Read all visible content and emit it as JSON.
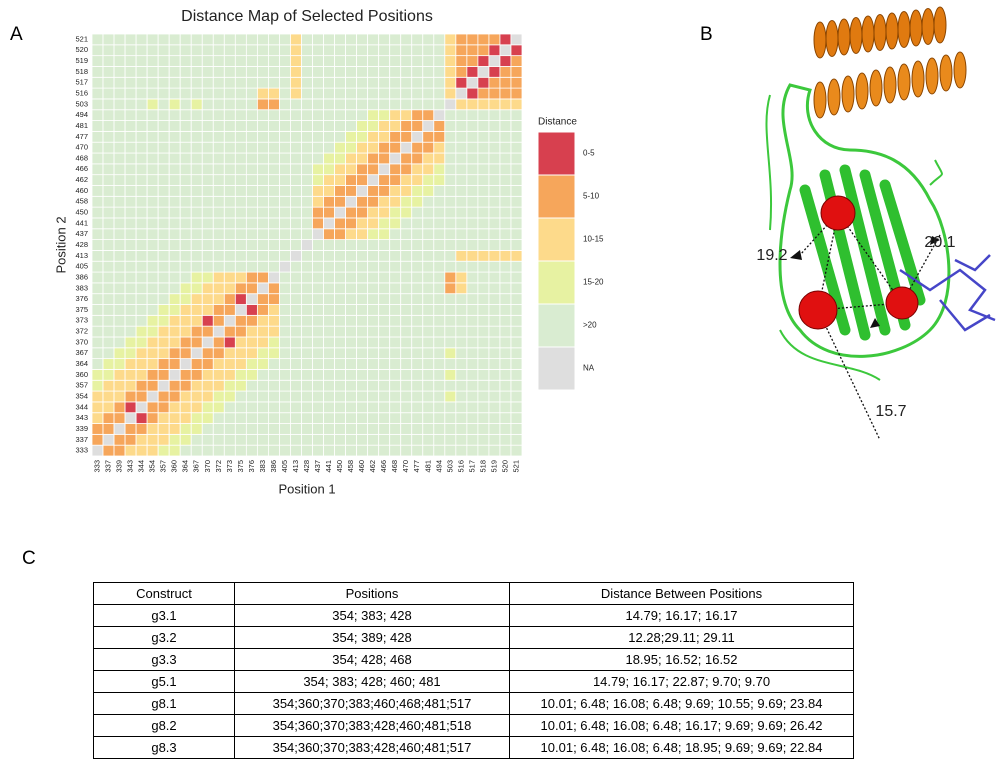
{
  "labels": [
    "A",
    "B",
    "C"
  ],
  "chart_data": {
    "type": "heatmap",
    "title": "Distance Map of Selected Positions",
    "x_label": "Position 1",
    "y_label": "Position 2",
    "categories": [
      333,
      337,
      339,
      343,
      344,
      354,
      357,
      360,
      364,
      367,
      370,
      372,
      373,
      375,
      376,
      383,
      386,
      405,
      413,
      428,
      437,
      441,
      450,
      458,
      460,
      462,
      466,
      468,
      470,
      477,
      481,
      494,
      503,
      516,
      517,
      518,
      519,
      520,
      521
    ],
    "legend": {
      "title": "Distance",
      "items": [
        {
          "label": "0-5",
          "color": "#d7404f"
        },
        {
          "label": "5-10",
          "color": "#f6a65b"
        },
        {
          "label": "10-15",
          "color": "#fdda8b"
        },
        {
          "label": "15-20",
          "color": "#e7f2a2"
        },
        {
          "label": ">20",
          "color": "#d9ecd1"
        },
        {
          "label": "NA",
          "color": "#dedede"
        }
      ]
    },
    "z": [
      [
        5,
        1,
        1,
        2,
        2,
        2,
        3,
        3,
        4,
        4,
        4,
        4,
        4,
        4,
        4,
        4,
        4,
        4,
        4,
        4,
        4,
        4,
        4,
        4,
        4,
        4,
        4,
        4,
        4,
        4,
        4,
        4,
        4,
        4,
        4,
        4,
        4,
        4,
        4
      ],
      [
        1,
        5,
        1,
        1,
        2,
        2,
        2,
        3,
        3,
        4,
        4,
        4,
        4,
        4,
        4,
        4,
        4,
        4,
        4,
        4,
        4,
        4,
        4,
        4,
        4,
        4,
        4,
        4,
        4,
        4,
        4,
        4,
        4,
        4,
        4,
        4,
        4,
        4,
        4
      ],
      [
        1,
        1,
        5,
        1,
        1,
        2,
        2,
        2,
        3,
        3,
        4,
        4,
        4,
        4,
        4,
        4,
        4,
        4,
        4,
        4,
        4,
        4,
        4,
        4,
        4,
        4,
        4,
        4,
        4,
        4,
        4,
        4,
        4,
        4,
        4,
        4,
        4,
        4,
        4
      ],
      [
        2,
        1,
        1,
        5,
        0,
        1,
        2,
        2,
        2,
        3,
        3,
        4,
        4,
        4,
        4,
        4,
        4,
        4,
        4,
        4,
        4,
        4,
        4,
        4,
        4,
        4,
        4,
        4,
        4,
        4,
        4,
        4,
        4,
        4,
        4,
        4,
        4,
        4,
        4
      ],
      [
        2,
        2,
        1,
        0,
        5,
        1,
        1,
        2,
        2,
        2,
        3,
        3,
        4,
        4,
        4,
        4,
        4,
        4,
        4,
        4,
        4,
        4,
        4,
        4,
        4,
        4,
        4,
        4,
        4,
        4,
        4,
        4,
        4,
        4,
        4,
        4,
        4,
        4,
        4
      ],
      [
        2,
        2,
        2,
        1,
        1,
        5,
        1,
        1,
        2,
        2,
        2,
        3,
        3,
        4,
        4,
        4,
        4,
        4,
        4,
        4,
        4,
        4,
        4,
        4,
        4,
        4,
        4,
        4,
        4,
        4,
        4,
        4,
        3,
        4,
        4,
        4,
        4,
        4,
        4
      ],
      [
        3,
        2,
        2,
        2,
        1,
        1,
        5,
        1,
        1,
        2,
        2,
        2,
        3,
        3,
        4,
        4,
        4,
        4,
        4,
        4,
        4,
        4,
        4,
        4,
        4,
        4,
        4,
        4,
        4,
        4,
        4,
        4,
        4,
        4,
        4,
        4,
        4,
        4,
        4
      ],
      [
        3,
        3,
        2,
        2,
        2,
        1,
        1,
        5,
        1,
        1,
        2,
        2,
        2,
        3,
        3,
        4,
        4,
        4,
        4,
        4,
        4,
        4,
        4,
        4,
        4,
        4,
        4,
        4,
        4,
        4,
        4,
        4,
        3,
        4,
        4,
        4,
        4,
        4,
        4
      ],
      [
        4,
        3,
        3,
        2,
        2,
        2,
        1,
        1,
        5,
        1,
        1,
        2,
        2,
        2,
        3,
        3,
        4,
        4,
        4,
        4,
        4,
        4,
        4,
        4,
        4,
        4,
        4,
        4,
        4,
        4,
        4,
        4,
        4,
        4,
        4,
        4,
        4,
        4,
        4
      ],
      [
        4,
        4,
        3,
        3,
        2,
        2,
        2,
        1,
        1,
        5,
        1,
        1,
        2,
        2,
        2,
        3,
        3,
        4,
        4,
        4,
        4,
        4,
        4,
        4,
        4,
        4,
        4,
        4,
        4,
        4,
        4,
        4,
        3,
        4,
        4,
        4,
        4,
        4,
        4
      ],
      [
        4,
        4,
        4,
        3,
        3,
        2,
        2,
        2,
        1,
        1,
        5,
        1,
        0,
        2,
        2,
        2,
        3,
        4,
        4,
        4,
        4,
        4,
        4,
        4,
        4,
        4,
        4,
        4,
        4,
        4,
        4,
        4,
        4,
        4,
        4,
        4,
        4,
        4,
        4
      ],
      [
        4,
        4,
        4,
        4,
        3,
        3,
        2,
        2,
        2,
        1,
        1,
        5,
        1,
        1,
        2,
        2,
        2,
        4,
        4,
        4,
        4,
        4,
        4,
        4,
        4,
        4,
        4,
        4,
        4,
        4,
        4,
        4,
        4,
        4,
        4,
        4,
        4,
        4,
        4
      ],
      [
        4,
        4,
        4,
        4,
        4,
        3,
        3,
        2,
        2,
        2,
        0,
        1,
        5,
        1,
        1,
        2,
        2,
        4,
        4,
        4,
        4,
        4,
        4,
        4,
        4,
        4,
        4,
        4,
        4,
        4,
        4,
        4,
        4,
        4,
        4,
        4,
        4,
        4,
        4
      ],
      [
        4,
        4,
        4,
        4,
        4,
        4,
        3,
        3,
        2,
        2,
        2,
        1,
        1,
        5,
        0,
        1,
        2,
        4,
        4,
        4,
        4,
        4,
        4,
        4,
        4,
        4,
        4,
        4,
        4,
        4,
        4,
        4,
        4,
        4,
        4,
        4,
        4,
        4,
        4
      ],
      [
        4,
        4,
        4,
        4,
        4,
        4,
        4,
        3,
        3,
        2,
        2,
        2,
        1,
        0,
        5,
        1,
        1,
        4,
        4,
        4,
        4,
        4,
        4,
        4,
        4,
        4,
        4,
        4,
        4,
        4,
        4,
        4,
        4,
        4,
        4,
        4,
        4,
        4,
        4
      ],
      [
        4,
        4,
        4,
        4,
        4,
        4,
        4,
        4,
        3,
        3,
        2,
        2,
        2,
        1,
        1,
        5,
        1,
        4,
        4,
        4,
        4,
        4,
        4,
        4,
        4,
        4,
        4,
        4,
        4,
        4,
        4,
        4,
        1,
        2,
        4,
        4,
        4,
        4,
        4
      ],
      [
        4,
        4,
        4,
        4,
        4,
        4,
        4,
        4,
        4,
        3,
        3,
        2,
        2,
        2,
        1,
        1,
        5,
        4,
        4,
        4,
        4,
        4,
        4,
        4,
        4,
        4,
        4,
        4,
        4,
        4,
        4,
        4,
        1,
        2,
        4,
        4,
        4,
        4,
        4
      ],
      [
        4,
        4,
        4,
        4,
        4,
        4,
        4,
        4,
        4,
        4,
        4,
        4,
        4,
        4,
        4,
        4,
        4,
        5,
        4,
        4,
        4,
        4,
        4,
        4,
        4,
        4,
        4,
        4,
        4,
        4,
        4,
        4,
        4,
        4,
        4,
        4,
        4,
        4,
        4
      ],
      [
        4,
        4,
        4,
        4,
        4,
        4,
        4,
        4,
        4,
        4,
        4,
        4,
        4,
        4,
        4,
        4,
        4,
        4,
        5,
        4,
        4,
        4,
        4,
        4,
        4,
        4,
        4,
        4,
        4,
        4,
        4,
        4,
        4,
        2,
        2,
        2,
        2,
        2,
        2
      ],
      [
        4,
        4,
        4,
        4,
        4,
        4,
        4,
        4,
        4,
        4,
        4,
        4,
        4,
        4,
        4,
        4,
        4,
        4,
        4,
        5,
        4,
        4,
        4,
        4,
        4,
        4,
        4,
        4,
        4,
        4,
        4,
        4,
        4,
        4,
        4,
        4,
        4,
        4,
        4
      ],
      [
        4,
        4,
        4,
        4,
        4,
        4,
        4,
        4,
        4,
        4,
        4,
        4,
        4,
        4,
        4,
        4,
        4,
        4,
        4,
        4,
        5,
        1,
        1,
        2,
        2,
        3,
        3,
        4,
        4,
        4,
        4,
        4,
        4,
        4,
        4,
        4,
        4,
        4,
        4
      ],
      [
        4,
        4,
        4,
        4,
        4,
        4,
        4,
        4,
        4,
        4,
        4,
        4,
        4,
        4,
        4,
        4,
        4,
        4,
        4,
        4,
        1,
        5,
        1,
        1,
        2,
        2,
        3,
        3,
        4,
        4,
        4,
        4,
        4,
        4,
        4,
        4,
        4,
        4,
        4
      ],
      [
        4,
        4,
        4,
        4,
        4,
        4,
        4,
        4,
        4,
        4,
        4,
        4,
        4,
        4,
        4,
        4,
        4,
        4,
        4,
        4,
        1,
        1,
        5,
        1,
        1,
        2,
        2,
        3,
        3,
        4,
        4,
        4,
        4,
        4,
        4,
        4,
        4,
        4,
        4
      ],
      [
        4,
        4,
        4,
        4,
        4,
        4,
        4,
        4,
        4,
        4,
        4,
        4,
        4,
        4,
        4,
        4,
        4,
        4,
        4,
        4,
        2,
        1,
        1,
        5,
        1,
        1,
        2,
        2,
        3,
        3,
        4,
        4,
        4,
        4,
        4,
        4,
        4,
        4,
        4
      ],
      [
        4,
        4,
        4,
        4,
        4,
        4,
        4,
        4,
        4,
        4,
        4,
        4,
        4,
        4,
        4,
        4,
        4,
        4,
        4,
        4,
        2,
        2,
        1,
        1,
        5,
        1,
        1,
        2,
        2,
        3,
        3,
        4,
        4,
        4,
        4,
        4,
        4,
        4,
        4
      ],
      [
        4,
        4,
        4,
        4,
        4,
        4,
        4,
        4,
        4,
        4,
        4,
        4,
        4,
        4,
        4,
        4,
        4,
        4,
        4,
        4,
        3,
        2,
        2,
        1,
        1,
        5,
        1,
        1,
        2,
        2,
        3,
        3,
        4,
        4,
        4,
        4,
        4,
        4,
        4
      ],
      [
        4,
        4,
        4,
        4,
        4,
        4,
        4,
        4,
        4,
        4,
        4,
        4,
        4,
        4,
        4,
        4,
        4,
        4,
        4,
        4,
        3,
        3,
        2,
        2,
        1,
        1,
        5,
        1,
        1,
        2,
        2,
        3,
        4,
        4,
        4,
        4,
        4,
        4,
        4
      ],
      [
        4,
        4,
        4,
        4,
        4,
        4,
        4,
        4,
        4,
        4,
        4,
        4,
        4,
        4,
        4,
        4,
        4,
        4,
        4,
        4,
        4,
        3,
        3,
        2,
        2,
        1,
        1,
        5,
        1,
        1,
        2,
        2,
        4,
        4,
        4,
        4,
        4,
        4,
        4
      ],
      [
        4,
        4,
        4,
        4,
        4,
        4,
        4,
        4,
        4,
        4,
        4,
        4,
        4,
        4,
        4,
        4,
        4,
        4,
        4,
        4,
        4,
        4,
        3,
        3,
        2,
        2,
        1,
        1,
        5,
        1,
        1,
        2,
        4,
        4,
        4,
        4,
        4,
        4,
        4
      ],
      [
        4,
        4,
        4,
        4,
        4,
        4,
        4,
        4,
        4,
        4,
        4,
        4,
        4,
        4,
        4,
        4,
        4,
        4,
        4,
        4,
        4,
        4,
        4,
        3,
        3,
        2,
        2,
        1,
        1,
        5,
        1,
        1,
        4,
        4,
        4,
        4,
        4,
        4,
        4
      ],
      [
        4,
        4,
        4,
        4,
        4,
        4,
        4,
        4,
        4,
        4,
        4,
        4,
        4,
        4,
        4,
        4,
        4,
        4,
        4,
        4,
        4,
        4,
        4,
        4,
        3,
        3,
        2,
        2,
        1,
        1,
        5,
        1,
        4,
        4,
        4,
        4,
        4,
        4,
        4
      ],
      [
        4,
        4,
        4,
        4,
        4,
        4,
        4,
        4,
        4,
        4,
        4,
        4,
        4,
        4,
        4,
        4,
        4,
        4,
        4,
        4,
        4,
        4,
        4,
        4,
        4,
        3,
        3,
        2,
        2,
        1,
        1,
        5,
        4,
        4,
        4,
        4,
        4,
        4,
        4
      ],
      [
        4,
        4,
        4,
        4,
        4,
        3,
        4,
        3,
        4,
        3,
        4,
        4,
        4,
        4,
        4,
        1,
        1,
        4,
        4,
        4,
        4,
        4,
        4,
        4,
        4,
        4,
        4,
        4,
        4,
        4,
        4,
        4,
        5,
        2,
        2,
        2,
        2,
        2,
        2
      ],
      [
        4,
        4,
        4,
        4,
        4,
        4,
        4,
        4,
        4,
        4,
        4,
        4,
        4,
        4,
        4,
        2,
        2,
        4,
        2,
        4,
        4,
        4,
        4,
        4,
        4,
        4,
        4,
        4,
        4,
        4,
        4,
        4,
        2,
        5,
        0,
        1,
        1,
        1,
        1
      ],
      [
        4,
        4,
        4,
        4,
        4,
        4,
        4,
        4,
        4,
        4,
        4,
        4,
        4,
        4,
        4,
        4,
        4,
        4,
        2,
        4,
        4,
        4,
        4,
        4,
        4,
        4,
        4,
        4,
        4,
        4,
        4,
        4,
        2,
        0,
        5,
        0,
        1,
        1,
        1
      ],
      [
        4,
        4,
        4,
        4,
        4,
        4,
        4,
        4,
        4,
        4,
        4,
        4,
        4,
        4,
        4,
        4,
        4,
        4,
        2,
        4,
        4,
        4,
        4,
        4,
        4,
        4,
        4,
        4,
        4,
        4,
        4,
        4,
        2,
        1,
        0,
        5,
        0,
        1,
        1
      ],
      [
        4,
        4,
        4,
        4,
        4,
        4,
        4,
        4,
        4,
        4,
        4,
        4,
        4,
        4,
        4,
        4,
        4,
        4,
        2,
        4,
        4,
        4,
        4,
        4,
        4,
        4,
        4,
        4,
        4,
        4,
        4,
        4,
        2,
        1,
        1,
        0,
        5,
        0,
        1
      ],
      [
        4,
        4,
        4,
        4,
        4,
        4,
        4,
        4,
        4,
        4,
        4,
        4,
        4,
        4,
        4,
        4,
        4,
        4,
        2,
        4,
        4,
        4,
        4,
        4,
        4,
        4,
        4,
        4,
        4,
        4,
        4,
        4,
        2,
        1,
        1,
        1,
        0,
        5,
        0
      ],
      [
        4,
        4,
        4,
        4,
        4,
        4,
        4,
        4,
        4,
        4,
        4,
        4,
        4,
        4,
        4,
        4,
        4,
        4,
        2,
        4,
        4,
        4,
        4,
        4,
        4,
        4,
        4,
        4,
        4,
        4,
        4,
        4,
        2,
        1,
        1,
        1,
        1,
        0,
        5
      ]
    ]
  },
  "structure": {
    "distances": [
      19.2,
      20.1,
      15.7
    ]
  },
  "table": {
    "header": [
      "Construct",
      "Positions",
      "Distance Between Positions"
    ],
    "rows": [
      [
        "g3.1",
        "354; 383; 428",
        "14.79; 16.17; 16.17"
      ],
      [
        "g3.2",
        "354; 389; 428",
        "12.28;29.11; 29.11"
      ],
      [
        "g3.3",
        "354; 428; 468",
        "18.95; 16.52; 16.52"
      ],
      [
        "g5.1",
        "354; 383; 428; 460; 481",
        "14.79; 16.17; 22.87; 9.70; 9.70"
      ],
      [
        "g8.1",
        "354;360;370;383;460;468;481;517",
        "10.01; 6.48; 16.08; 6.48; 9.69; 10.55; 9.69; 23.84"
      ],
      [
        "g8.2",
        "354;360;370;383;428;460;481;518",
        "10.01; 6.48; 16.08; 6.48; 16.17; 9.69; 9.69; 26.42"
      ],
      [
        "g8.3",
        "354;360;370;383;428;460;481;517",
        "10.01; 6.48; 16.08; 6.48; 18.95; 9.69; 9.69; 22.84"
      ]
    ]
  }
}
